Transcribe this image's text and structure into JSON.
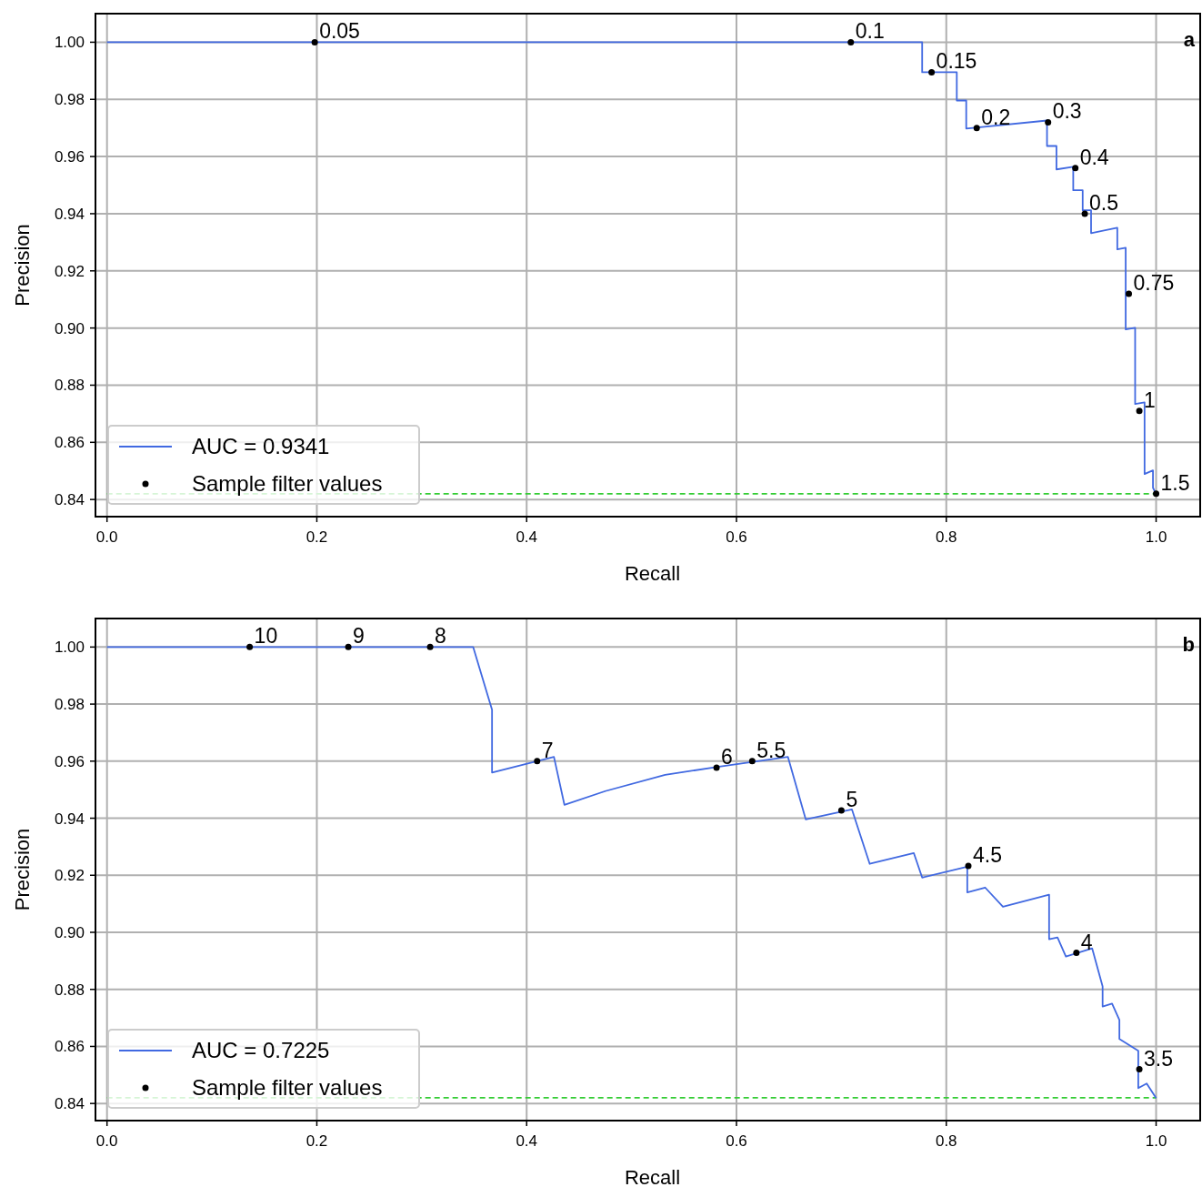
{
  "chart_data": [
    {
      "type": "line",
      "xlabel": "Recall",
      "ylabel": "Precision",
      "xlim": [
        -0.011,
        1.042
      ],
      "ylim": [
        0.834,
        1.01
      ],
      "annotations": [
        "a",
        {
          "text": "0.05",
          "x": 0.198,
          "y": 1.0
        },
        {
          "text": "0.1",
          "x": 0.709,
          "y": 1.0
        },
        {
          "text": "0.15",
          "x": 0.786,
          "y": 0.9895
        },
        {
          "text": "0.2",
          "x": 0.829,
          "y": 0.97
        },
        {
          "text": "0.3",
          "x": 0.897,
          "y": 0.972
        },
        {
          "text": "0.4",
          "x": 0.923,
          "y": 0.956
        },
        {
          "text": "0.5",
          "x": 0.932,
          "y": 0.94
        },
        {
          "text": "0.75",
          "x": 0.974,
          "y": 0.912
        },
        {
          "text": "1",
          "x": 0.984,
          "y": 0.871
        },
        {
          "text": "1.5",
          "x": 1.0,
          "y": 0.842
        }
      ],
      "xticks": [
        {
          "value": 0,
          "label": "0.0"
        },
        {
          "value": 0.2,
          "label": "0.2"
        },
        {
          "value": 0.4,
          "label": "0.4"
        },
        {
          "value": 0.6,
          "label": "0.6"
        },
        {
          "value": 0.8,
          "label": "0.8"
        },
        {
          "value": 1,
          "label": "1.0"
        }
      ],
      "yticks": [
        {
          "value": 0.84,
          "label": "0.84"
        },
        {
          "value": 0.86,
          "label": "0.86"
        },
        {
          "value": 0.88,
          "label": "0.88"
        },
        {
          "value": 0.9,
          "label": "0.90"
        },
        {
          "value": 0.92,
          "label": "0.92"
        },
        {
          "value": 0.94,
          "label": "0.94"
        },
        {
          "value": 0.96,
          "label": "0.96"
        },
        {
          "value": 0.98,
          "label": "0.98"
        },
        {
          "value": 1,
          "label": "1.00"
        }
      ],
      "grid": true,
      "legend": "bottom left",
      "ref_lines": [
        {
          "axis": "y",
          "value": 0.842,
          "color": "#33cc33",
          "line_style": "dashed"
        }
      ],
      "series": [
        {
          "name": "AUC = 0.9341",
          "color": "#4169e1",
          "x": [
            0,
            0.777,
            0.777,
            0.81,
            0.81,
            0.819,
            0.819,
            0.896,
            0.896,
            0.905,
            0.905,
            0.921,
            0.921,
            0.93,
            0.93,
            0.938,
            0.938,
            0.963,
            0.963,
            0.971,
            0.971,
            0.98,
            0.98,
            0.989,
            0.989,
            0.997,
            0.997,
            1.0
          ],
          "values": [
            1.0,
            1.0,
            0.9895,
            0.9895,
            0.9796,
            0.9796,
            0.9698,
            0.9726,
            0.9637,
            0.9637,
            0.9555,
            0.9564,
            0.9482,
            0.9482,
            0.9412,
            0.9412,
            0.9332,
            0.9351,
            0.9275,
            0.9281,
            0.8995,
            0.9001,
            0.8734,
            0.874,
            0.8489,
            0.8502,
            0.8441,
            0.8419
          ]
        },
        {
          "type": "scatter",
          "name": "Sample filter values",
          "color": "#000000",
          "marker": "circle",
          "x": [
            0.198,
            0.709,
            0.786,
            0.829,
            0.897,
            0.923,
            0.932,
            0.974,
            0.984,
            1.0
          ],
          "values": [
            1.0,
            1.0,
            0.9895,
            0.97,
            0.972,
            0.956,
            0.94,
            0.912,
            0.871,
            0.842
          ]
        }
      ]
    },
    {
      "type": "line",
      "xlabel": "Recall",
      "ylabel": "Precision",
      "xlim": [
        -0.011,
        1.042
      ],
      "ylim": [
        0.834,
        1.01
      ],
      "annotations": [
        "b",
        {
          "text": "10",
          "x": 0.136,
          "y": 1.0
        },
        {
          "text": "9",
          "x": 0.23,
          "y": 1.0
        },
        {
          "text": "8",
          "x": 0.308,
          "y": 1.0
        },
        {
          "text": "7",
          "x": 0.41,
          "y": 0.96
        },
        {
          "text": "6",
          "x": 0.581,
          "y": 0.9577
        },
        {
          "text": "5.5",
          "x": 0.615,
          "y": 0.96
        },
        {
          "text": "5",
          "x": 0.7,
          "y": 0.9427
        },
        {
          "text": "4.5",
          "x": 0.821,
          "y": 0.9233
        },
        {
          "text": "4",
          "x": 0.924,
          "y": 0.8928
        },
        {
          "text": "3.5",
          "x": 0.984,
          "y": 0.852
        }
      ],
      "xticks": [
        {
          "value": 0,
          "label": "0.0"
        },
        {
          "value": 0.2,
          "label": "0.2"
        },
        {
          "value": 0.4,
          "label": "0.4"
        },
        {
          "value": 0.6,
          "label": "0.6"
        },
        {
          "value": 0.8,
          "label": "0.8"
        },
        {
          "value": 1,
          "label": "1.0"
        }
      ],
      "yticks": [
        {
          "value": 0.84,
          "label": "0.84"
        },
        {
          "value": 0.86,
          "label": "0.86"
        },
        {
          "value": 0.88,
          "label": "0.88"
        },
        {
          "value": 0.9,
          "label": "0.90"
        },
        {
          "value": 0.92,
          "label": "0.92"
        },
        {
          "value": 0.94,
          "label": "0.94"
        },
        {
          "value": 0.96,
          "label": "0.96"
        },
        {
          "value": 0.98,
          "label": "0.98"
        },
        {
          "value": 1,
          "label": "1.00"
        }
      ],
      "grid": true,
      "legend": "bottom left",
      "ref_lines": [
        {
          "axis": "y",
          "value": 0.842,
          "color": "#33cc33",
          "line_style": "dashed"
        }
      ],
      "series": [
        {
          "name": "AUC = 0.7225",
          "color": "#4169e1",
          "x": [
            0,
            0.349,
            0.367,
            0.367,
            0.426,
            0.436,
            0.475,
            0.532,
            0.582,
            0.649,
            0.666,
            0.71,
            0.727,
            0.769,
            0.777,
            0.82,
            0.82,
            0.837,
            0.854,
            0.898,
            0.898,
            0.906,
            0.914,
            0.939,
            0.949,
            0.949,
            0.958,
            0.965,
            0.965,
            0.983,
            0.983,
            0.991,
            1.0
          ],
          "values": [
            1.0,
            1.0,
            0.978,
            0.956,
            0.9615,
            0.9447,
            0.9495,
            0.9552,
            0.958,
            0.9615,
            0.9396,
            0.9431,
            0.924,
            0.9278,
            0.9192,
            0.923,
            0.914,
            0.9157,
            0.909,
            0.9132,
            0.8976,
            0.8982,
            0.8915,
            0.8944,
            0.881,
            0.874,
            0.875,
            0.8693,
            0.8626,
            0.8585,
            0.8454,
            0.847,
            0.8419
          ]
        },
        {
          "type": "scatter",
          "name": "Sample filter values",
          "color": "#000000",
          "marker": "circle",
          "x": [
            0.136,
            0.23,
            0.308,
            0.41,
            0.581,
            0.615,
            0.7,
            0.821,
            0.924,
            0.984
          ],
          "values": [
            1.0,
            1.0,
            1.0,
            0.96,
            0.9577,
            0.96,
            0.9427,
            0.9233,
            0.8928,
            0.852
          ]
        }
      ]
    }
  ]
}
